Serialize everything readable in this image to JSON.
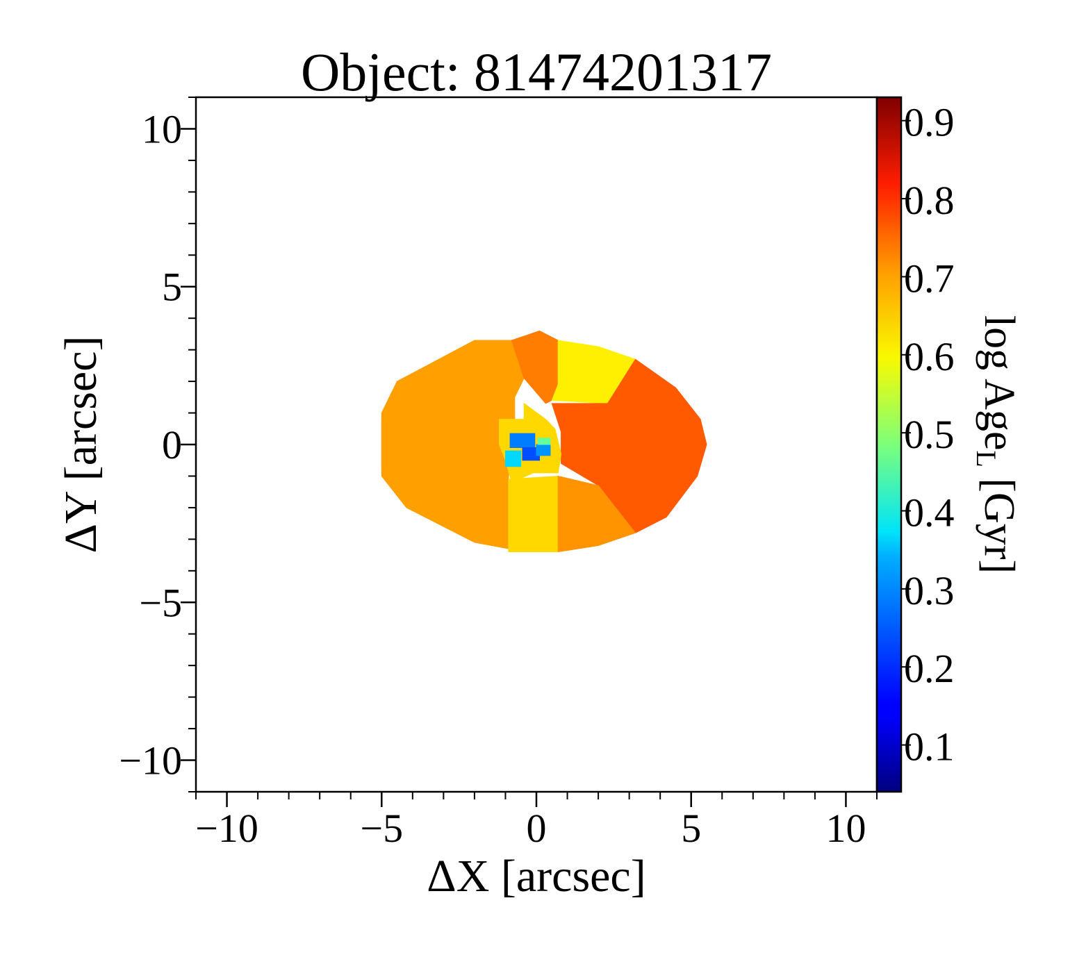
{
  "chart_data": {
    "type": "heatmap",
    "title": "Object: 81474201317",
    "xlabel": "ΔX [arcsec]",
    "ylabel": "ΔY [arcsec]",
    "colorbar_label_main": "log Age",
    "colorbar_label_sub": "L",
    "colorbar_label_unit": " [Gyr]",
    "xlim": [
      -11,
      11
    ],
    "ylim": [
      -11,
      11
    ],
    "xticks": [
      -10,
      -5,
      0,
      5,
      10
    ],
    "yticks": [
      -10,
      -5,
      0,
      5,
      10
    ],
    "xtick_labels": [
      "−10",
      "−5",
      "0",
      "5",
      "10"
    ],
    "ytick_labels": [
      "−10",
      "−5",
      "0",
      "5",
      "10"
    ],
    "colorbar_range": [
      0.04,
      0.93
    ],
    "colorbar_ticks": [
      0.1,
      0.2,
      0.3,
      0.4,
      0.5,
      0.6,
      0.7,
      0.8,
      0.9
    ],
    "colorbar_tick_labels": [
      "0.1",
      "0.2",
      "0.3",
      "0.4",
      "0.5",
      "0.6",
      "0.7",
      "0.8",
      "0.9"
    ],
    "colormap": "jet",
    "grid": false,
    "regions": [
      {
        "name": "upper-left",
        "value": 0.68,
        "polygon": [
          [
            -5.0,
            0
          ],
          [
            -0.7,
            0
          ],
          [
            -0.7,
            1.5
          ],
          [
            -0.4,
            2.1
          ],
          [
            -0.8,
            3.3
          ],
          [
            -2.0,
            3.3
          ],
          [
            -4.5,
            2.0
          ],
          [
            -5.0,
            1.0
          ]
        ]
      },
      {
        "name": "lower-left",
        "value": 0.68,
        "polygon": [
          [
            -5.0,
            0
          ],
          [
            -0.7,
            0
          ],
          [
            -0.9,
            -1.0
          ],
          [
            -0.9,
            -3.3
          ],
          [
            -2.0,
            -3.1
          ],
          [
            -4.2,
            -2.0
          ],
          [
            -5.0,
            -1.0
          ]
        ]
      },
      {
        "name": "upper-middle",
        "value": 0.71,
        "polygon": [
          [
            -0.8,
            3.3
          ],
          [
            0.1,
            3.6
          ],
          [
            0.7,
            3.3
          ],
          [
            0.7,
            1.5
          ],
          [
            0.3,
            1.3
          ],
          [
            -0.4,
            2.1
          ]
        ]
      },
      {
        "name": "upper-right-yellow",
        "value": 0.61,
        "polygon": [
          [
            0.7,
            3.3
          ],
          [
            2.0,
            3.1
          ],
          [
            3.2,
            2.7
          ],
          [
            2.3,
            1.3
          ],
          [
            0.5,
            1.4
          ],
          [
            0.7,
            1.9
          ]
        ]
      },
      {
        "name": "right",
        "value": 0.74,
        "polygon": [
          [
            3.2,
            2.7
          ],
          [
            4.5,
            1.8
          ],
          [
            5.3,
            0.8
          ],
          [
            5.5,
            0
          ],
          [
            5.2,
            -1.0
          ],
          [
            4.2,
            -2.3
          ],
          [
            3.2,
            -2.8
          ],
          [
            2.0,
            -1.3
          ],
          [
            0.8,
            -0.6
          ],
          [
            0.8,
            0.4
          ],
          [
            0.5,
            1.3
          ],
          [
            2.3,
            1.3
          ]
        ]
      },
      {
        "name": "lower-middle-yellow",
        "value": 0.63,
        "polygon": [
          [
            -0.9,
            -1.1
          ],
          [
            0.7,
            -1.0
          ],
          [
            0.7,
            -3.4
          ],
          [
            -0.9,
            -3.4
          ]
        ]
      },
      {
        "name": "lower-right",
        "value": 0.69,
        "polygon": [
          [
            0.7,
            -1.0
          ],
          [
            2.0,
            -1.3
          ],
          [
            3.2,
            -2.8
          ],
          [
            2.0,
            -3.2
          ],
          [
            0.7,
            -3.4
          ]
        ]
      },
      {
        "name": "center-yellow",
        "value": 0.63,
        "polygon": [
          [
            -1.2,
            0.8
          ],
          [
            -0.4,
            0.8
          ],
          [
            -0.4,
            1.3
          ],
          [
            0.3,
            0.8
          ],
          [
            0.6,
            0.5
          ],
          [
            0.8,
            -0.3
          ],
          [
            0.7,
            -0.9
          ],
          [
            -0.1,
            -0.9
          ],
          [
            -0.8,
            -1.2
          ],
          [
            -1.0,
            -0.5
          ],
          [
            -1.2,
            0
          ]
        ]
      },
      {
        "name": "center-cyan",
        "value": 0.34,
        "polygon": [
          [
            -1.0,
            -0.2
          ],
          [
            -0.5,
            -0.2
          ],
          [
            -0.5,
            -0.7
          ],
          [
            -1.0,
            -0.7
          ]
        ]
      },
      {
        "name": "center-blue-1",
        "value": 0.26,
        "polygon": [
          [
            -0.85,
            0.35
          ],
          [
            -0.05,
            0.35
          ],
          [
            -0.05,
            -0.1
          ],
          [
            -0.85,
            -0.1
          ]
        ]
      },
      {
        "name": "center-blue-2",
        "value": 0.22,
        "polygon": [
          [
            -0.45,
            -0.1
          ],
          [
            0.1,
            -0.1
          ],
          [
            0.1,
            -0.5
          ],
          [
            -0.45,
            -0.5
          ]
        ]
      },
      {
        "name": "center-blue-3",
        "value": 0.28,
        "polygon": [
          [
            0.0,
            0.0
          ],
          [
            0.45,
            0.0
          ],
          [
            0.45,
            -0.35
          ],
          [
            0.0,
            -0.35
          ]
        ]
      },
      {
        "name": "center-green",
        "value": 0.46,
        "polygon": [
          [
            0.05,
            0.2
          ],
          [
            0.45,
            0.2
          ],
          [
            0.45,
            0.0
          ],
          [
            0.05,
            0.0
          ]
        ]
      }
    ]
  }
}
